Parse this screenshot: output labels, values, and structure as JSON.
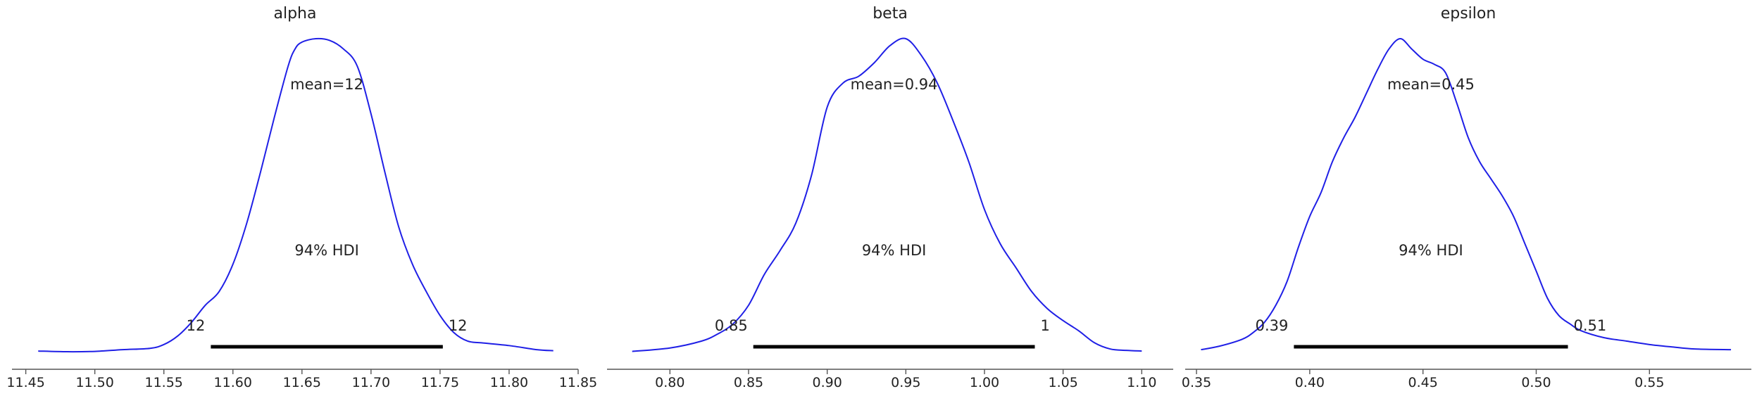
{
  "chart_data": [
    {
      "type": "line",
      "title": "alpha",
      "xlim": [
        11.44,
        11.85
      ],
      "xticks": [
        11.45,
        11.5,
        11.55,
        11.6,
        11.65,
        11.7,
        11.75,
        11.8,
        11.85
      ],
      "xtick_labels": [
        "11.45",
        "11.50",
        "11.55",
        "11.60",
        "11.65",
        "11.70",
        "11.75",
        "11.80",
        "11.85"
      ],
      "density": {
        "x": [
          11.459,
          11.48,
          11.5,
          11.52,
          11.54,
          11.55,
          11.56,
          11.57,
          11.58,
          11.59,
          11.6,
          11.61,
          11.62,
          11.63,
          11.64,
          11.645,
          11.65,
          11.66,
          11.67,
          11.68,
          11.69,
          11.7,
          11.71,
          11.72,
          11.73,
          11.74,
          11.75,
          11.76,
          11.77,
          11.78,
          11.8,
          11.82,
          11.832
        ],
        "y": [
          0.006,
          0.004,
          0.005,
          0.01,
          0.014,
          0.025,
          0.05,
          0.09,
          0.14,
          0.18,
          0.26,
          0.38,
          0.53,
          0.69,
          0.84,
          0.89,
          0.91,
          0.92,
          0.915,
          0.89,
          0.84,
          0.7,
          0.53,
          0.37,
          0.26,
          0.18,
          0.11,
          0.06,
          0.035,
          0.03,
          0.022,
          0.01,
          0.007
        ]
      },
      "mean_label": "mean=12",
      "hdi_label": "94% HDI",
      "hdi": [
        11.584,
        11.752
      ],
      "hdi_low_label": "12",
      "hdi_high_label": "12"
    },
    {
      "type": "line",
      "title": "beta",
      "xlim": [
        0.76,
        1.12
      ],
      "xticks": [
        0.8,
        0.85,
        0.9,
        0.95,
        1.0,
        1.05,
        1.1
      ],
      "xtick_labels": [
        "0.80",
        "0.85",
        "0.90",
        "0.95",
        "1.00",
        "1.05",
        "1.10"
      ],
      "density": {
        "x": [
          0.776,
          0.8,
          0.82,
          0.83,
          0.84,
          0.85,
          0.86,
          0.87,
          0.88,
          0.89,
          0.9,
          0.91,
          0.92,
          0.93,
          0.94,
          0.95,
          0.96,
          0.97,
          0.98,
          0.99,
          1.0,
          1.01,
          1.02,
          1.03,
          1.04,
          1.05,
          1.06,
          1.07,
          1.08,
          1.09,
          1.1
        ],
        "y": [
          0.005,
          0.015,
          0.035,
          0.055,
          0.085,
          0.14,
          0.23,
          0.3,
          0.38,
          0.52,
          0.72,
          0.79,
          0.81,
          0.85,
          0.9,
          0.92,
          0.87,
          0.79,
          0.68,
          0.56,
          0.42,
          0.32,
          0.25,
          0.18,
          0.13,
          0.095,
          0.065,
          0.03,
          0.012,
          0.008,
          0.006
        ]
      },
      "mean_label": "mean=0.94",
      "hdi_label": "94% HDI",
      "hdi": [
        0.853,
        1.032
      ],
      "hdi_low_label": "0.85",
      "hdi_high_label": "1"
    },
    {
      "type": "line",
      "title": "epsilon",
      "xlim": [
        0.345,
        0.595
      ],
      "xticks": [
        0.35,
        0.4,
        0.45,
        0.5,
        0.55
      ],
      "xtick_labels": [
        "0.35",
        "0.40",
        "0.45",
        "0.50",
        "0.55"
      ],
      "density": {
        "x": [
          0.352,
          0.36,
          0.37,
          0.375,
          0.38,
          0.385,
          0.39,
          0.395,
          0.4,
          0.405,
          0.41,
          0.415,
          0.42,
          0.425,
          0.43,
          0.435,
          0.44,
          0.445,
          0.45,
          0.455,
          0.46,
          0.465,
          0.47,
          0.475,
          0.48,
          0.485,
          0.49,
          0.495,
          0.5,
          0.505,
          0.51,
          0.515,
          0.52,
          0.53,
          0.54,
          0.55,
          0.56,
          0.57,
          0.586
        ],
        "y": [
          0.01,
          0.02,
          0.04,
          0.06,
          0.09,
          0.14,
          0.21,
          0.31,
          0.4,
          0.47,
          0.56,
          0.63,
          0.69,
          0.76,
          0.83,
          0.89,
          0.92,
          0.89,
          0.86,
          0.845,
          0.82,
          0.73,
          0.63,
          0.56,
          0.51,
          0.46,
          0.4,
          0.32,
          0.24,
          0.16,
          0.11,
          0.085,
          0.065,
          0.045,
          0.035,
          0.025,
          0.018,
          0.012,
          0.01
        ]
      },
      "mean_label": "mean=0.45",
      "hdi_label": "94% HDI",
      "hdi": [
        0.393,
        0.514
      ],
      "hdi_low_label": "0.39",
      "hdi_high_label": "0.51"
    }
  ],
  "colors": {
    "density_line": "#1f1fe6",
    "hdi_bar": "#000000",
    "axis": "#555555",
    "text": "#222222"
  }
}
